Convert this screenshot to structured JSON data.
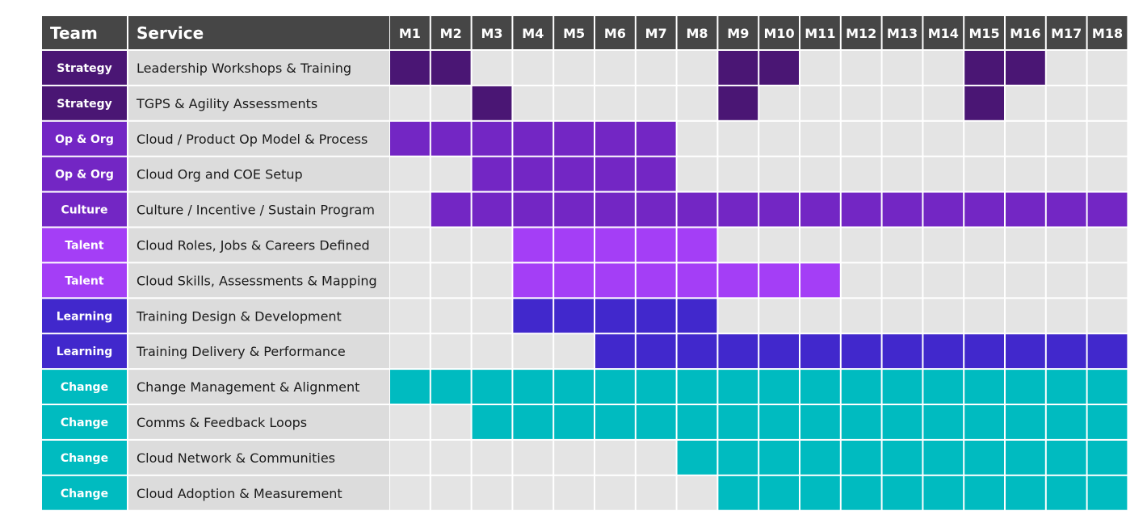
{
  "chart_data": {
    "type": "table",
    "header": {
      "team": "Team",
      "service": "Service"
    },
    "months": [
      "M1",
      "M2",
      "M3",
      "M4",
      "M5",
      "M6",
      "M7",
      "M8",
      "M9",
      "M10",
      "M11",
      "M12",
      "M13",
      "M14",
      "M15",
      "M16",
      "M17",
      "M18"
    ],
    "colors": {
      "header_bg": "#464646",
      "team_cell": {
        "Strategy": "#4a1674",
        "Op & Org": "#7326c4",
        "Culture": "#7326c4",
        "Talent": "#a43ef6",
        "Learning": "#4128cc",
        "Change": "#00bbc0"
      },
      "service_bg": "#dcdcdc",
      "empty_cell": "#e4e4e4"
    },
    "rows": [
      {
        "team": "Strategy",
        "service": "Leadership Workshops & Training",
        "active_months": [
          1,
          2,
          9,
          10,
          15,
          16
        ]
      },
      {
        "team": "Strategy",
        "service": "TGPS & Agility Assessments",
        "active_months": [
          3,
          9,
          15
        ]
      },
      {
        "team": "Op & Org",
        "service": "Cloud / Product Op Model & Process",
        "active_months": [
          1,
          2,
          3,
          4,
          5,
          6,
          7
        ]
      },
      {
        "team": "Op & Org",
        "service": "Cloud Org and COE Setup",
        "active_months": [
          3,
          4,
          5,
          6,
          7
        ]
      },
      {
        "team": "Culture",
        "service": "Culture / Incentive / Sustain Program",
        "active_months": [
          2,
          3,
          4,
          5,
          6,
          7,
          8,
          9,
          10,
          11,
          12,
          13,
          14,
          15,
          16,
          17,
          18
        ]
      },
      {
        "team": "Talent",
        "service": "Cloud Roles, Jobs & Careers Defined",
        "active_months": [
          4,
          5,
          6,
          7,
          8
        ]
      },
      {
        "team": "Talent",
        "service": "Cloud  Skills, Assessments & Mapping",
        "active_months": [
          4,
          5,
          6,
          7,
          8,
          9,
          10,
          11
        ]
      },
      {
        "team": "Learning",
        "service": "Training Design & Development",
        "active_months": [
          4,
          5,
          6,
          7,
          8
        ]
      },
      {
        "team": "Learning",
        "service": "Training Delivery & Performance",
        "active_months": [
          6,
          7,
          8,
          9,
          10,
          11,
          12,
          13,
          14,
          15,
          16,
          17,
          18
        ]
      },
      {
        "team": "Change",
        "service": "Change Management & Alignment",
        "active_months": [
          1,
          2,
          3,
          4,
          5,
          6,
          7,
          8,
          9,
          10,
          11,
          12,
          13,
          14,
          15,
          16,
          17,
          18
        ]
      },
      {
        "team": "Change",
        "service": "Comms & Feedback Loops",
        "active_months": [
          3,
          4,
          5,
          6,
          7,
          8,
          9,
          10,
          11,
          12,
          13,
          14,
          15,
          16,
          17,
          18
        ]
      },
      {
        "team": "Change",
        "service": "Cloud Network & Communities",
        "active_months": [
          8,
          9,
          10,
          11,
          12,
          13,
          14,
          15,
          16,
          17,
          18
        ]
      },
      {
        "team": "Change",
        "service": "Cloud Adoption & Measurement",
        "active_months": [
          9,
          10,
          11,
          12,
          13,
          14,
          15,
          16,
          17,
          18
        ]
      }
    ]
  }
}
